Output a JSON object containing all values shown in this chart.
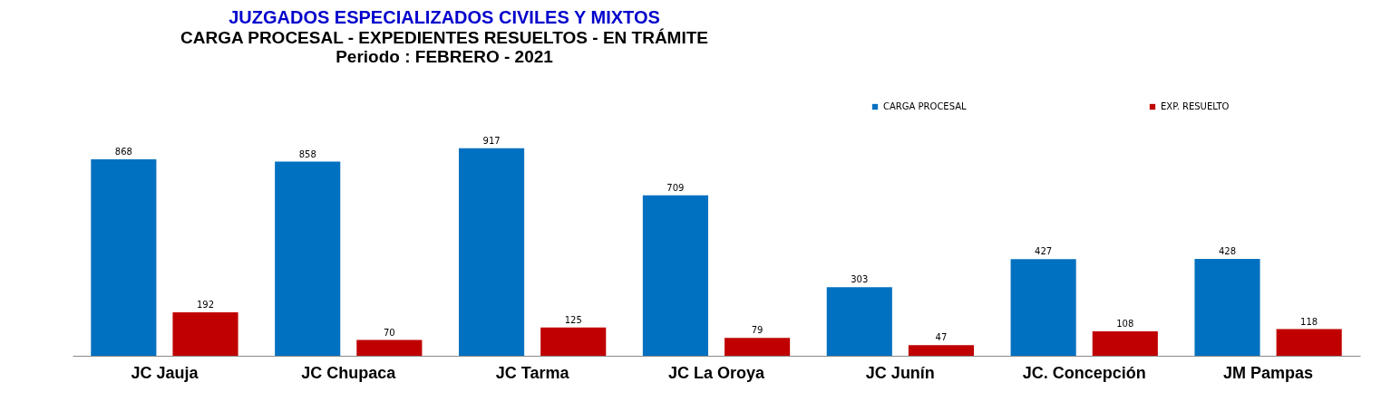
{
  "chart_data": {
    "type": "bar",
    "title": "JUZGADOS ESPECIALIZADOS CIVILES Y MIXTOS",
    "subtitle": "CARGA  PROCESAL - EXPEDIENTES RESUELTOS - EN TRÁMITE\nPeriodo : FEBRERO - 2021",
    "categories": [
      "JC Jauja",
      "JC Chupaca",
      "JC Tarma",
      "JC La Oroya",
      "JC Junín",
      "JC. Concepción",
      "JM Pampas"
    ],
    "series": [
      {
        "name": "CARGA PROCESAL",
        "color": "#0070c0",
        "values": [
          868,
          858,
          917,
          709,
          303,
          427,
          428
        ]
      },
      {
        "name": "EXP. RESUELTO",
        "color": "#c00000",
        "values": [
          192,
          70,
          125,
          79,
          47,
          108,
          118
        ]
      }
    ],
    "data_labels": true,
    "legend": "top right",
    "grid": false
  }
}
